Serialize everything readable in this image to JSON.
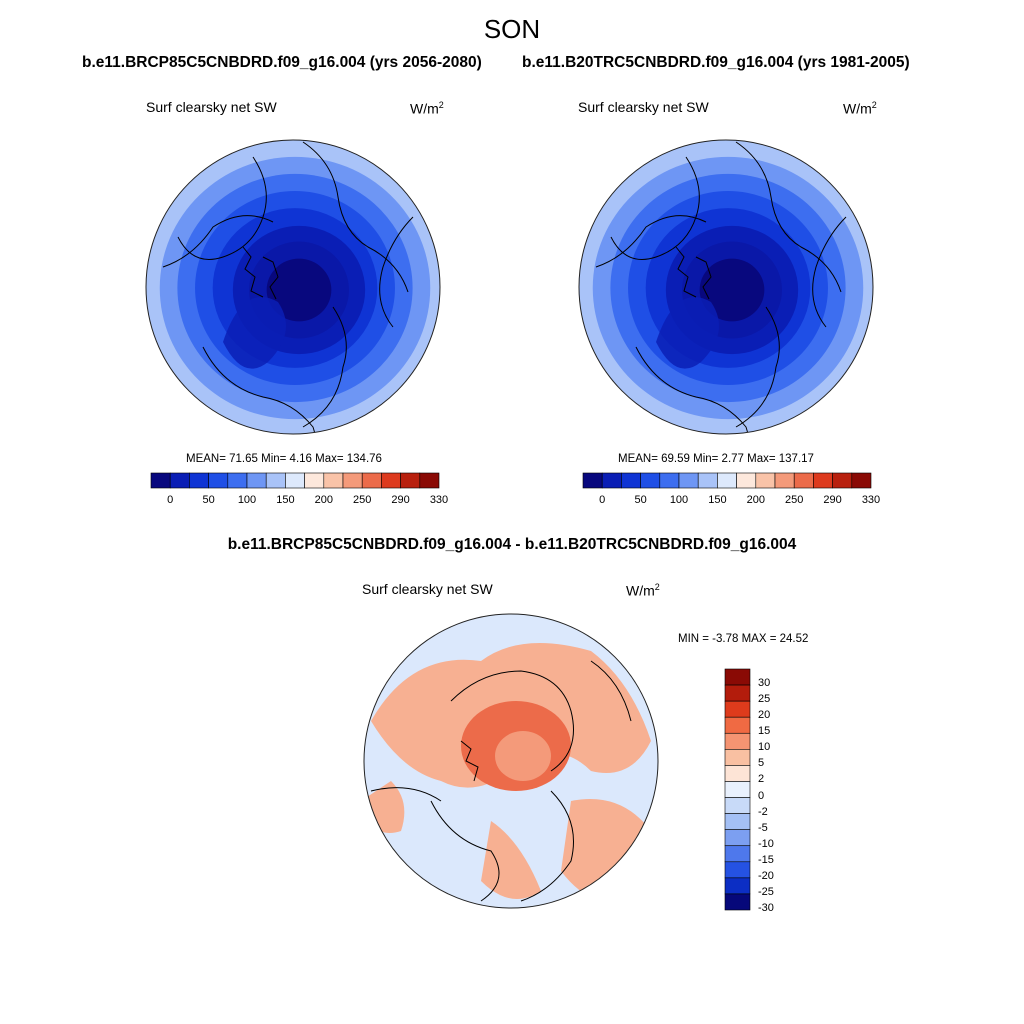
{
  "season": "SON",
  "left_title": "b.e11.BRCP85C5CNBDRD.f09_g16.004 (yrs 2056-2080)",
  "right_title": "b.e11.B20TRC5CNBDRD.f09_g16.004 (yrs 1981-2005)",
  "diff_title": "b.e11.BRCP85C5CNBDRD.f09_g16.004 - b.e11.B20TRC5CNBDRD.f09_g16.004",
  "panels": {
    "left": {
      "variable": "Surf clearsky net SW",
      "units": "W/m",
      "units_exp": "2",
      "stats": "MEAN=  71.65  Min=    4.16  Max= 134.76"
    },
    "right": {
      "variable": "Surf clearsky net SW",
      "units": "W/m",
      "units_exp": "2",
      "stats": "MEAN=  69.59  Min=    2.77  Max= 137.17"
    },
    "diff": {
      "variable": "Surf clearsky net SW",
      "units": "W/m",
      "units_exp": "2",
      "stats": "MIN =  -3.78 MAX =  24.52"
    }
  },
  "chart_data": [
    {
      "type": "heatmap",
      "title": "Surf clearsky net SW",
      "subtitle": "b.e11.BRCP85C5CNBDRD.f09_g16.004 (yrs 2056-2080)",
      "units": "W/m2",
      "projection": "north polar stereographic",
      "mean": 71.65,
      "min": 4.16,
      "max": 134.76,
      "colorbar_levels": [
        0,
        25,
        50,
        75,
        100,
        125,
        150,
        175,
        200,
        225,
        250,
        270,
        290,
        310,
        330
      ],
      "colorbar_labels": [
        "0",
        "50",
        "100",
        "150",
        "200",
        "250",
        "290",
        "330"
      ],
      "colorbar_label_index": [
        1,
        3,
        5,
        7,
        9,
        11,
        13,
        15
      ],
      "ring_values": [
        25,
        50,
        75,
        100,
        125,
        150,
        175
      ]
    },
    {
      "type": "heatmap",
      "title": "Surf clearsky net SW",
      "subtitle": "b.e11.B20TRC5CNBDRD.f09_g16.004 (yrs 1981-2005)",
      "units": "W/m2",
      "projection": "north polar stereographic",
      "mean": 69.59,
      "min": 2.77,
      "max": 137.17,
      "colorbar_levels": [
        0,
        25,
        50,
        75,
        100,
        125,
        150,
        175,
        200,
        225,
        250,
        270,
        290,
        310,
        330
      ],
      "colorbar_labels": [
        "0",
        "50",
        "100",
        "150",
        "200",
        "250",
        "290",
        "330"
      ],
      "colorbar_label_index": [
        1,
        3,
        5,
        7,
        9,
        11,
        13,
        15
      ],
      "ring_values": [
        25,
        50,
        75,
        100,
        125,
        150,
        175
      ]
    },
    {
      "type": "heatmap",
      "title": "Surf clearsky net SW",
      "subtitle": "b.e11.BRCP85C5CNBDRD.f09_g16.004 - b.e11.B20TRC5CNBDRD.f09_g16.004",
      "units": "W/m2",
      "projection": "north polar stereographic",
      "min": -3.78,
      "max": 24.52,
      "colorbar_levels": [
        "30",
        "25",
        "20",
        "15",
        "10",
        "5",
        "2",
        "0",
        "-2",
        "-5",
        "-10",
        "-15",
        "-20",
        "-25",
        "-30"
      ]
    }
  ],
  "colors": {
    "abs_scale": [
      "#08087e",
      "#0a1eb5",
      "#0f34d4",
      "#1f4fe6",
      "#3d6ef0",
      "#6e96f4",
      "#a9c3f8",
      "#dde9fc",
      "#fde8dc",
      "#f9c3a8",
      "#f49a7a",
      "#ec6b4a",
      "#dd3a1e",
      "#b8200e",
      "#8a0a05"
    ],
    "diff_scale": [
      "#8a0a05",
      "#b31c0c",
      "#de3b1c",
      "#f06a43",
      "#f59472",
      "#f9c0a2",
      "#fde4d6",
      "#e9f1fd",
      "#c8daf8",
      "#a4c0f5",
      "#7c9ff1",
      "#4e78ec",
      "#2552e3",
      "#0c2ec4",
      "#06087a"
    ],
    "ring_colors": [
      "#6e96f4",
      "#3d6ef0",
      "#1f4fe6",
      "#0f34d4",
      "#0a1eb5",
      "#0a18a8",
      "#08087e"
    ],
    "diff_background": "#dbe8fc",
    "diff_land": "#f7b092",
    "diff_hot": "#ec6b4a",
    "diff_core": "#f49a7a"
  }
}
